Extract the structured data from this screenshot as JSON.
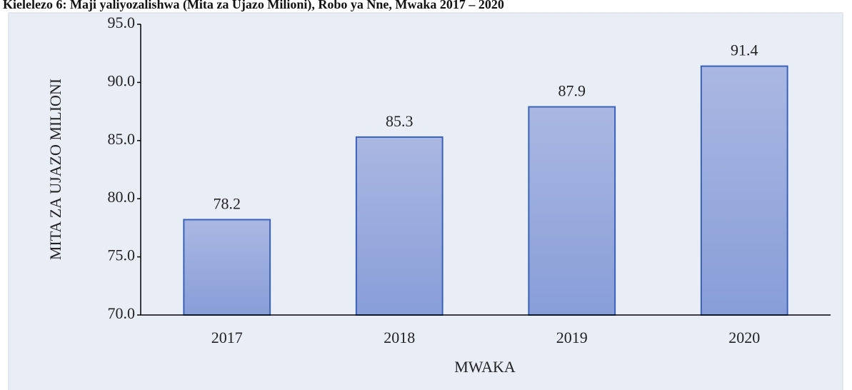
{
  "chart_data": {
    "type": "bar",
    "title": "Kielelezo 6: Maji yaliyozalishwa (Mita za Ujazo Milioni), Robo ya Nne, Mwaka 2017 – 2020",
    "x_label": "MWAKA",
    "y_label": "MITA ZA UJAZO MILIONI",
    "categories": [
      "2017",
      "2018",
      "2019",
      "2020"
    ],
    "values": [
      78.2,
      85.3,
      87.9,
      91.4
    ],
    "color": "#97a9dc",
    "edge_color": "#3a62b8",
    "ylim": [
      70,
      95
    ],
    "yticks": [
      {
        "value": 70,
        "label": "70.0"
      },
      {
        "value": 75,
        "label": "75.0"
      },
      {
        "value": 80,
        "label": "80.0"
      },
      {
        "value": 85,
        "label": "85.0"
      },
      {
        "value": 90,
        "label": "90.0"
      },
      {
        "value": 95,
        "label": "95.0"
      }
    ],
    "grid": false
  }
}
